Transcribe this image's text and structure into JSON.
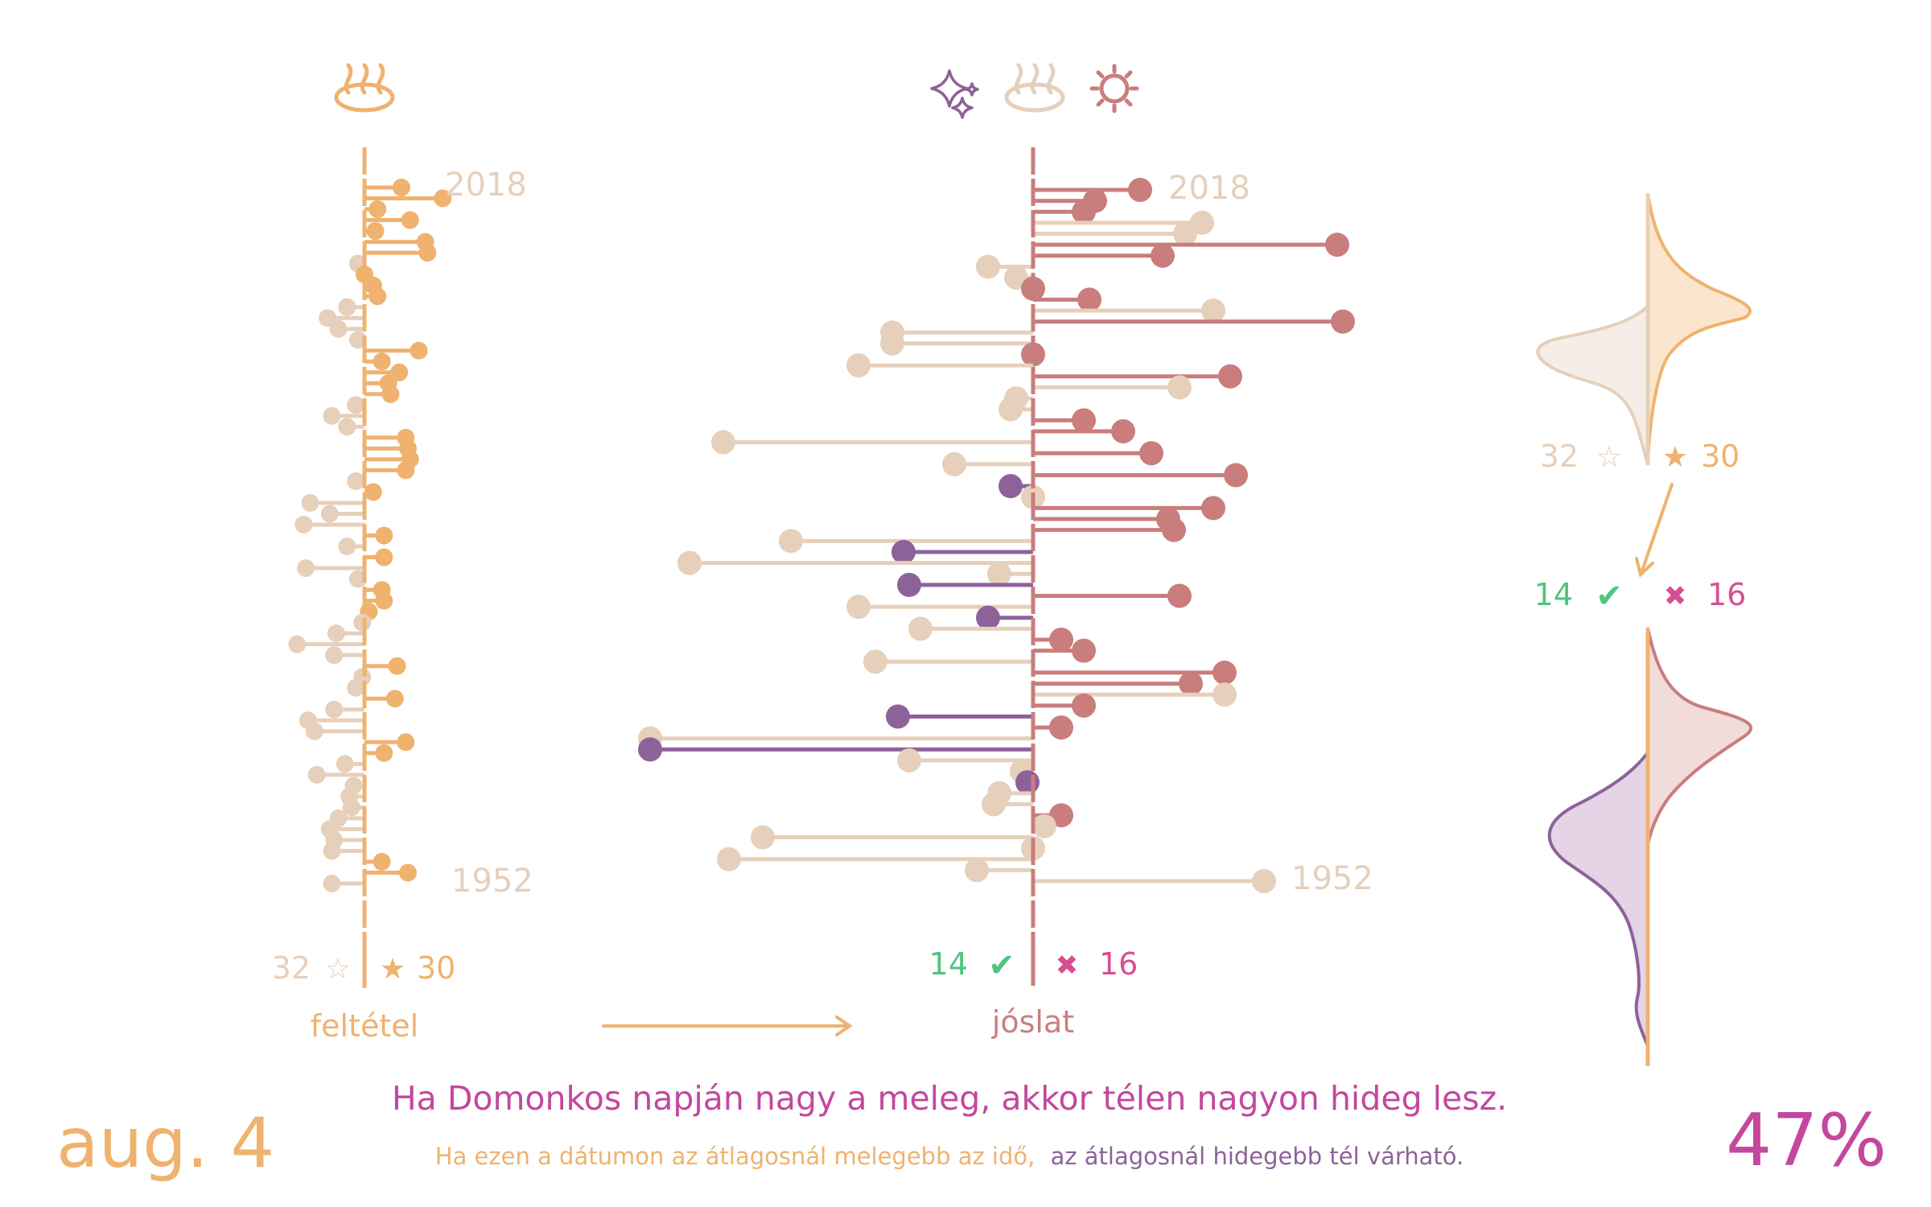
{
  "colors": {
    "warm": "#efb26f",
    "cold_light": "#e6d0bb",
    "warm_forecast": "#c97d7d",
    "cold_forecast": "#8d6299",
    "hit": "#4fc57f",
    "miss": "#d64f92",
    "headline": "#c4479e",
    "label_pink": "#c98080"
  },
  "icons": {
    "condition": "hot-spring-icon",
    "forecast": [
      "sparkles-icon",
      "hot-spring-icon",
      "sun-icon"
    ]
  },
  "condition_panel": {
    "year_top": "2018",
    "year_bottom": "1952",
    "count_cold": "32",
    "star_empty": "☆",
    "star_full": "★",
    "count_warm": "30",
    "label": "feltétel"
  },
  "forecast_panel": {
    "year_top": "2018",
    "year_bottom": "1952",
    "count_hit": "14",
    "check": "✔",
    "cross": "✖",
    "count_miss": "16",
    "label": "jóslat"
  },
  "side_panel": {
    "count_cold": "32",
    "star_empty": "☆",
    "star_full": "★",
    "count_warm": "30",
    "count_hit": "14",
    "check": "✔",
    "cross": "✖",
    "count_miss": "16"
  },
  "footer": {
    "date": "aug. 4",
    "saying": "Ha Domonkos napján nagy a meleg, akkor télen nagyon hideg lesz.",
    "explanation_part1": "Ha ezen a dátumon az átlagosnál melegebb az idő,",
    "explanation_part2": "az átlagosnál hidegebb tél várható.",
    "percent": "47%"
  },
  "chart_data": [
    {
      "type": "lollipop",
      "panel": "feltétel",
      "years_range": [
        1952,
        2018
      ],
      "description_of_values": "temperature anomaly on the date (right = warmer than average)",
      "xlim": [
        -3.5,
        4.0
      ],
      "values": [
        1.7,
        3.6,
        0.6,
        2.1,
        0.5,
        2.8,
        2.9,
        -0.3,
        0.0,
        0.4,
        0.6,
        -0.8,
        -1.7,
        -1.2,
        -0.3,
        2.5,
        0.8,
        1.6,
        1.1,
        1.2,
        -0.4,
        -1.5,
        -0.8,
        1.9,
        2.0,
        2.1,
        1.9,
        -0.4,
        0.4,
        -2.5,
        -1.6,
        -2.8,
        0.9,
        -0.8,
        0.9,
        -2.7,
        -0.3,
        0.8,
        0.9,
        0.2,
        -0.1,
        -1.3,
        -3.1,
        -1.4,
        1.5,
        -0.1,
        -0.4,
        1.4,
        -1.4,
        -2.6,
        -2.3,
        1.9,
        0.9,
        -0.9,
        -2.2,
        -0.5,
        -0.7,
        -0.6,
        -1.2,
        -1.6,
        -1.4,
        -1.5,
        0.8,
        2.0,
        -1.5
      ]
    },
    {
      "type": "lollipop",
      "panel": "jóslat",
      "years_range": [
        1952,
        2018
      ],
      "description_of_values": "winter temperature anomaly (right = warmer than average)",
      "xlim": [
        -7.0,
        6.5
      ],
      "values": [
        1.9,
        1.1,
        0.9,
        3.0,
        2.7,
        5.4,
        2.3,
        -0.8,
        -0.3,
        0.0,
        1.0,
        3.2,
        5.5,
        -2.5,
        -2.5,
        0.0,
        -3.1,
        3.5,
        2.6,
        -0.3,
        -0.4,
        0.9,
        1.6,
        -5.5,
        2.1,
        -1.4,
        3.6,
        -0.4,
        0.0,
        3.2,
        2.4,
        2.5,
        -4.3,
        -2.3,
        -6.1,
        -0.6,
        -2.2,
        2.6,
        -3.1,
        -0.8,
        -2.0,
        0.5,
        0.9,
        -2.8,
        3.4,
        2.8,
        3.4,
        0.9,
        -2.4,
        0.5,
        -6.8,
        -6.8,
        -2.2,
        -0.2,
        -0.1,
        -0.6,
        -0.7,
        0.5,
        0.2,
        -4.8,
        0.0,
        -5.4,
        -1.0,
        4.1
      ]
    }
  ]
}
